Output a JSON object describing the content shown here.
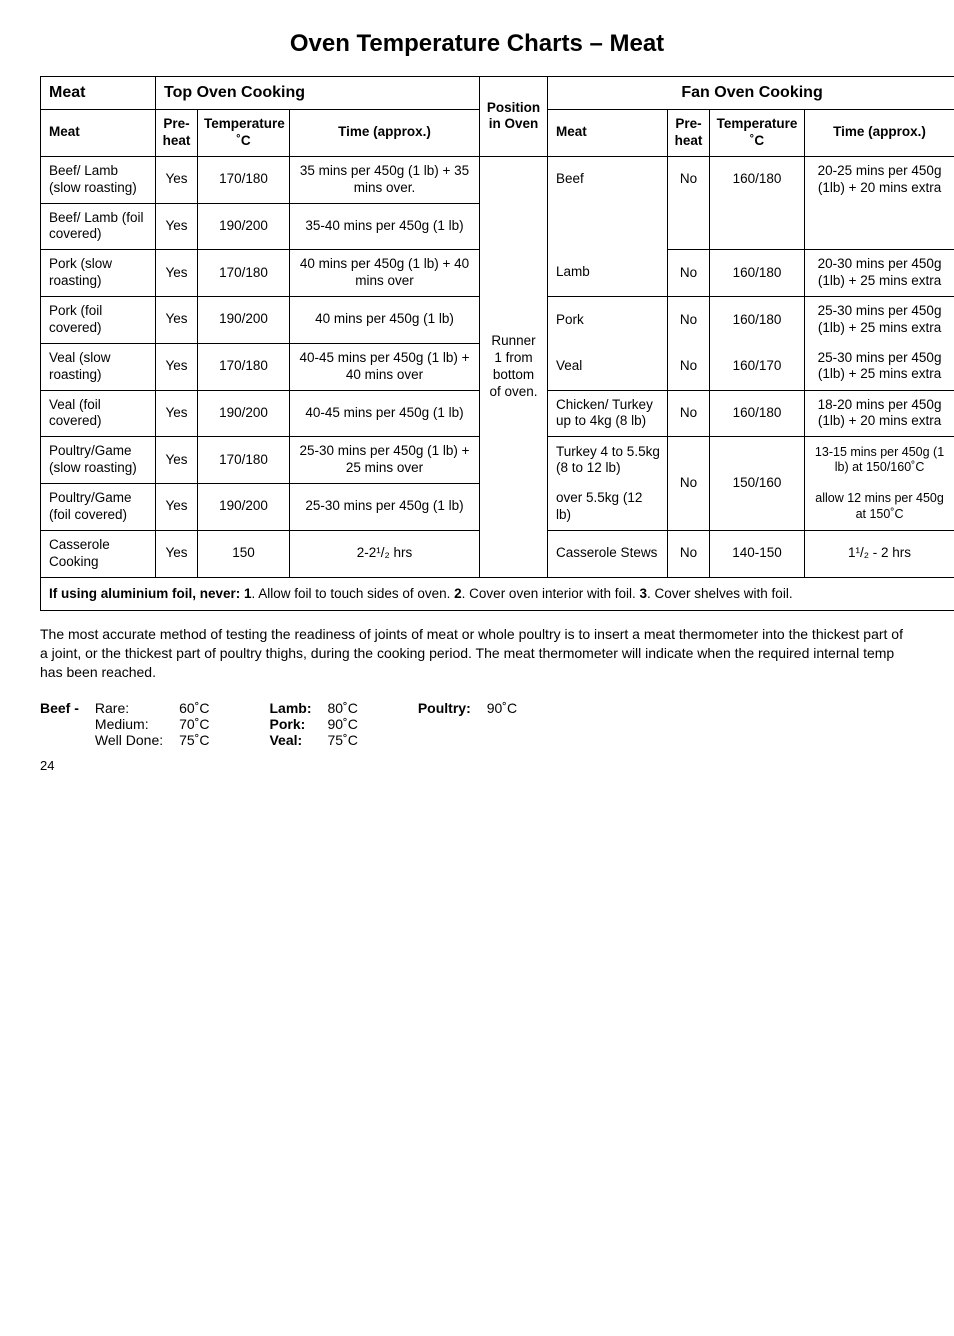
{
  "title": "Oven Temperature Charts – Meat",
  "header": {
    "meat_section": "Meat",
    "top_section": "Top Oven Cooking",
    "fan_section": "Fan Oven Cooking",
    "meat_col": "Meat",
    "preheat_col": "Pre-heat",
    "temp_col": "Temperature ˚C",
    "time_col": "Time (approx.)",
    "position_col": "Position in Oven"
  },
  "position_cell": "Runner 1 from bottom of oven.",
  "rows_top": [
    {
      "meat": "Beef/ Lamb (slow roasting)",
      "pre": "Yes",
      "temp": "170/180",
      "time": "35 mins per 450g (1 lb) + 35 mins over."
    },
    {
      "meat": "Beef/ Lamb (foil covered)",
      "pre": "Yes",
      "temp": "190/200",
      "time": "35-40 mins per 450g (1 lb)"
    },
    {
      "meat": "Pork (slow roasting)",
      "pre": "Yes",
      "temp": "170/180",
      "time": "40 mins per 450g (1 lb) + 40 mins over"
    },
    {
      "meat": "Pork (foil covered)",
      "pre": "Yes",
      "temp": "190/200",
      "time": "40 mins per 450g (1 lb)"
    },
    {
      "meat": "Veal (slow roasting)",
      "pre": "Yes",
      "temp": "170/180",
      "time": "40-45 mins per 450g (1 lb) + 40 mins over"
    },
    {
      "meat": "Veal (foil covered)",
      "pre": "Yes",
      "temp": "190/200",
      "time": "40-45 mins per 450g (1 lb)"
    },
    {
      "meat": "Poultry/Game (slow roasting)",
      "pre": "Yes",
      "temp": "170/180",
      "time": "25-30 mins per 450g (1 lb) + 25 mins over"
    },
    {
      "meat": "Poultry/Game (foil covered)",
      "pre": "Yes",
      "temp": "190/200",
      "time": "25-30 mins per 450g (1 lb)"
    },
    {
      "meat": "Casserole Cooking",
      "pre": "Yes",
      "temp": "150",
      "time": "2-2¹/₂ hrs"
    }
  ],
  "rows_fan": [
    {
      "meat": "Beef",
      "pre": "No",
      "temp": "160/180",
      "time": "20-25 mins per 450g (1lb) + 20 mins extra"
    },
    {
      "meat": "Lamb",
      "pre": "No",
      "temp": "160/180",
      "time": "20-30 mins per 450g (1lb) + 25 mins extra"
    },
    {
      "meat": "Pork",
      "pre": "No",
      "temp": "160/180",
      "time": "25-30 mins per 450g (1lb) + 25 mins extra"
    },
    {
      "meat": "Veal",
      "pre": "No",
      "temp": "160/170",
      "time": "25-30 mins per 450g (1lb) + 25 mins extra"
    },
    {
      "meat": "Chicken/ Turkey up to 4kg (8 lb)",
      "pre": "No",
      "temp": "160/180",
      "time": "18-20 mins per 450g (1lb) + 20 mins extra"
    },
    {
      "meat_a": "Turkey 4 to 5.5kg (8 to 12 lb)",
      "meat_b": "over 5.5kg (12 lb)",
      "pre": "No",
      "temp": "150/160",
      "time_a": "13-15 mins per 450g (1 lb) at 150/160˚C",
      "time_b": "allow 12 mins per 450g at 150˚C"
    },
    {
      "meat": "Casserole Stews",
      "pre": "No",
      "temp": "140-150",
      "time": "1¹/₂ - 2 hrs"
    }
  ],
  "foil_note": {
    "prefix": "If using aluminium foil, never:  1",
    "part1": ". Allow foil to touch sides of oven.   ",
    "b2": "2",
    "part2": ". Cover oven interior with foil.   ",
    "b3": "3",
    "part3": ". Cover shelves with foil."
  },
  "para": "The most accurate method of testing the readiness of joints of meat or whole poultry is to insert a meat thermometer into the thickest part of a joint, or the thickest part of poultry thighs, during the cooking period. The meat thermometer will indicate when the required internal temp has been reached.",
  "temps": {
    "beef_label": "Beef -",
    "beef_names": [
      "Rare:",
      "Medium:",
      "Well Done:"
    ],
    "beef_vals": [
      "60˚C",
      "70˚C",
      "75˚C"
    ],
    "lamb_label": "Lamb:",
    "lamb_val": "80˚C",
    "pork_label": "Pork:",
    "pork_val": "90˚C",
    "veal_label": "Veal:",
    "veal_val": "75˚C",
    "poultry_label": "Poultry:",
    "poultry_val": "90˚C"
  },
  "page": "24"
}
